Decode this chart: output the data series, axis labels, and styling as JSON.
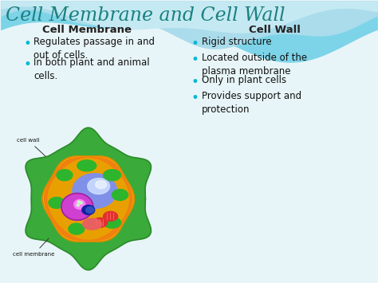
{
  "title": "Cell Membrane and Cell Wall",
  "title_color": "#1a8080",
  "title_fontsize": 17,
  "left_header": "Cell Membrane",
  "right_header": "Cell Wall",
  "header_color": "#222222",
  "header_fontsize": 9.5,
  "bullet_color": "#00b8d4",
  "text_color": "#111111",
  "bullet_fontsize": 8.5,
  "left_bullets": [
    "Regulates passage in and\nout of cells.",
    "In both plant and animal\ncells."
  ],
  "right_bullets": [
    "Rigid structure",
    "Located outside of the\nplasma membrane",
    "Only in plant cells",
    "Provides support and\nprotection"
  ],
  "bg_color": "#e8f5f8",
  "wave_color1": "#7dd4e8",
  "wave_color2": "#aadcec",
  "wave_color3": "#c5e9f2",
  "image_label_top": "cell wall",
  "image_label_bottom": "cell membrane"
}
